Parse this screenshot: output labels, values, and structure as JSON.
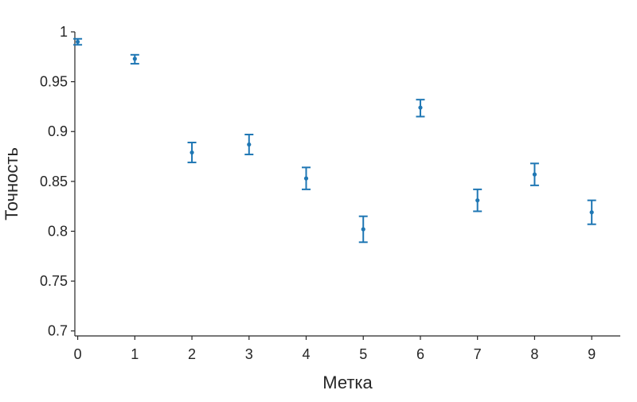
{
  "chart_data": {
    "type": "scatter",
    "title": "",
    "xlabel": "Метка",
    "ylabel": "Точность",
    "xlim": [
      -0.05,
      9.5
    ],
    "ylim": [
      0.695,
      1.0
    ],
    "xticks": [
      "0",
      "1",
      "2",
      "3",
      "4",
      "5",
      "6",
      "7",
      "8",
      "9"
    ],
    "yticks": [
      {
        "value": 1.0,
        "label": "1"
      },
      {
        "value": 0.95,
        "label": "0.95"
      },
      {
        "value": 0.9,
        "label": "0.9"
      },
      {
        "value": 0.85,
        "label": "0.85"
      },
      {
        "value": 0.8,
        "label": "0.8"
      },
      {
        "value": 0.75,
        "label": "0.75"
      },
      {
        "value": 0.7,
        "label": "0.7"
      }
    ],
    "grid": false,
    "series": [
      {
        "color": "#1f77b4",
        "points": [
          {
            "x": 0,
            "y": 0.99,
            "err_low": 0.987,
            "err_high": 0.993
          },
          {
            "x": 1,
            "y": 0.973,
            "err_low": 0.968,
            "err_high": 0.977
          },
          {
            "x": 2,
            "y": 0.879,
            "err_low": 0.869,
            "err_high": 0.889
          },
          {
            "x": 3,
            "y": 0.887,
            "err_low": 0.877,
            "err_high": 0.897
          },
          {
            "x": 4,
            "y": 0.853,
            "err_low": 0.842,
            "err_high": 0.864
          },
          {
            "x": 5,
            "y": 0.802,
            "err_low": 0.789,
            "err_high": 0.815
          },
          {
            "x": 6,
            "y": 0.924,
            "err_low": 0.915,
            "err_high": 0.932
          },
          {
            "x": 7,
            "y": 0.831,
            "err_low": 0.82,
            "err_high": 0.842
          },
          {
            "x": 8,
            "y": 0.857,
            "err_low": 0.846,
            "err_high": 0.868
          },
          {
            "x": 9,
            "y": 0.819,
            "err_low": 0.807,
            "err_high": 0.831
          }
        ]
      }
    ]
  }
}
